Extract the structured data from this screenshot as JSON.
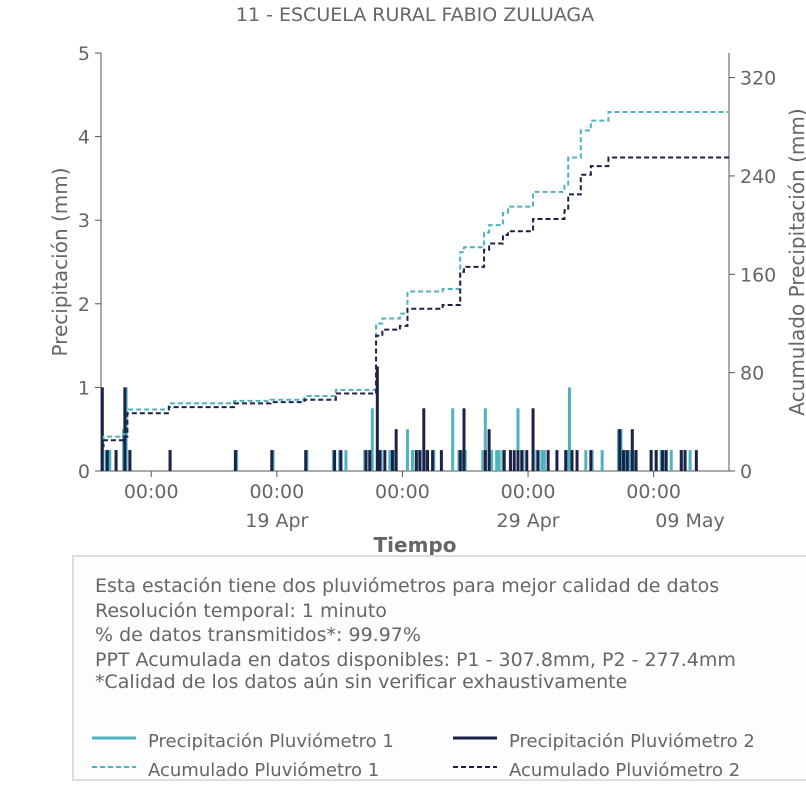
{
  "colors": {
    "series1": "#4fb3bf",
    "series2": "#1c2147",
    "text": "#666666",
    "axis": "#555555"
  },
  "chart_data": {
    "type": "line",
    "title": "11 - ESCUELA RURAL FABIO ZULUAGA",
    "xlabel": "Tiempo",
    "ylabel": "Precipitación (mm)",
    "y2label": "Acumulado Precipitación (mm)",
    "ylim": [
      0,
      5
    ],
    "y2lim": [
      0,
      340
    ],
    "xlim_days": [
      0,
      25
    ],
    "yticks": [
      0,
      1,
      2,
      3,
      4,
      5
    ],
    "y2ticks": [
      0,
      80,
      160,
      240,
      320
    ],
    "xticks": [
      {
        "day": 2,
        "label": "00:00",
        "date": ""
      },
      {
        "day": 7,
        "label": "00:00",
        "date": "19 Apr"
      },
      {
        "day": 12,
        "label": "00:00",
        "date": ""
      },
      {
        "day": 17,
        "label": "00:00",
        "date": "29 Apr"
      },
      {
        "day": 22,
        "label": "00:00",
        "date": ""
      },
      {
        "day": 27,
        "label": "",
        "date": "09 May"
      }
    ],
    "legend_position": "below",
    "series": [
      {
        "name": "Precipitación Pluviómetro 1",
        "kind": "bars",
        "axis": "left",
        "x": [
          0.05,
          0.2,
          0.35,
          0.6,
          0.9,
          1.0,
          1.15,
          2.75,
          5.4,
          6.85,
          8.2,
          9.25,
          9.5,
          9.75,
          10.5,
          10.7,
          10.8,
          11.0,
          11.15,
          11.5,
          11.65,
          12.2,
          12.4,
          12.65,
          12.9,
          13.25,
          14.0,
          14.25,
          14.35,
          14.5,
          15.2,
          15.3,
          15.55,
          15.75,
          15.85,
          16.0,
          16.3,
          16.6,
          16.8,
          17.2,
          17.35,
          17.55,
          17.65,
          18.55,
          18.65,
          19.3,
          19.55,
          19.95,
          20.6,
          20.7,
          20.85,
          21.05,
          21.2,
          21.9,
          22.1,
          22.3,
          22.45,
          22.7,
          23.1,
          23.25,
          23.45
        ],
        "y": [
          1.0,
          0.25,
          0.25,
          0.25,
          0.5,
          1.0,
          0.25,
          0.25,
          0.25,
          0.25,
          0.25,
          0.25,
          0.25,
          0.25,
          0.25,
          0.25,
          0.75,
          0.25,
          0.25,
          0.25,
          0.25,
          0.5,
          0.25,
          0.25,
          0.25,
          0.25,
          0.75,
          0.25,
          0.25,
          0.25,
          0.25,
          0.75,
          0.25,
          0.25,
          0.25,
          0.25,
          0.25,
          0.75,
          0.25,
          0.25,
          0.25,
          0.25,
          0.25,
          0.25,
          1.0,
          0.25,
          0.25,
          0.25,
          0.5,
          0.5,
          0.25,
          0.25,
          0.25,
          0.25,
          0.25,
          0.25,
          0.25,
          0.25,
          0.25,
          0.25,
          0.25
        ]
      },
      {
        "name": "Precipitación Pluviómetro 2",
        "kind": "bars",
        "axis": "left",
        "x": [
          0.05,
          0.25,
          0.6,
          0.95,
          1.15,
          2.75,
          5.35,
          6.8,
          8.15,
          9.3,
          9.55,
          10.55,
          10.7,
          11.0,
          11.1,
          11.3,
          11.6,
          11.75,
          12.55,
          12.7,
          12.85,
          13.0,
          13.2,
          13.55,
          14.3,
          14.45,
          15.3,
          15.45,
          16.05,
          16.3,
          16.45,
          16.6,
          16.75,
          16.95,
          17.2,
          17.4,
          17.8,
          18.15,
          18.5,
          18.75,
          18.95,
          19.5,
          20.65,
          20.8,
          20.95,
          21.15,
          21.3,
          21.9,
          22.1,
          22.35,
          22.5,
          23.1,
          23.25,
          23.7
        ],
        "y": [
          1.0,
          0.25,
          0.25,
          1.0,
          0.25,
          0.25,
          0.25,
          0.25,
          0.25,
          0.25,
          0.25,
          0.25,
          0.25,
          1.25,
          0.25,
          0.25,
          0.25,
          0.5,
          0.25,
          0.25,
          0.75,
          0.25,
          0.25,
          0.25,
          0.25,
          0.75,
          0.25,
          0.5,
          0.25,
          0.25,
          0.25,
          0.25,
          0.25,
          0.25,
          0.75,
          0.25,
          0.25,
          0.25,
          0.25,
          0.25,
          0.25,
          0.25,
          0.5,
          0.25,
          0.25,
          0.5,
          0.25,
          0.25,
          0.25,
          0.25,
          0.25,
          0.25,
          0.25,
          0.25
        ]
      },
      {
        "name": "Acumulado Pluviómetro 1",
        "kind": "step",
        "axis": "right",
        "x": [
          0.0,
          0.1,
          0.9,
          1.05,
          2.7,
          5.3,
          6.75,
          8.1,
          9.35,
          10.95,
          11.2,
          11.9,
          12.2,
          13.6,
          14.3,
          14.45,
          15.25,
          15.45,
          16.0,
          16.2,
          17.2,
          18.45,
          18.6,
          19.1,
          19.5,
          20.2
        ],
        "y": [
          20,
          28,
          30,
          50,
          55,
          57,
          58,
          61,
          66,
          120,
          124,
          128,
          146,
          148,
          178,
          182,
          194,
          200,
          210,
          215,
          227,
          232,
          255,
          277,
          285,
          292
        ]
      },
      {
        "name": "Acumulado Pluviómetro 2",
        "kind": "step",
        "axis": "right",
        "x": [
          0.0,
          0.1,
          0.9,
          1.05,
          2.7,
          5.3,
          6.75,
          8.1,
          9.35,
          10.95,
          11.2,
          11.9,
          12.2,
          13.6,
          14.3,
          14.45,
          15.25,
          15.45,
          16.0,
          16.2,
          17.2,
          18.45,
          18.6,
          19.1,
          19.5,
          20.2
        ],
        "y": [
          20,
          25,
          28,
          47,
          52,
          55,
          56,
          58,
          63,
          110,
          115,
          118,
          132,
          135,
          162,
          166,
          180,
          185,
          192,
          195,
          205,
          212,
          225,
          241,
          248,
          255
        ]
      }
    ]
  },
  "info": {
    "line1": "Esta estación tiene dos pluviómetros para mejor calidad de datos",
    "line2": "Resolución temporal: 1 minuto",
    "line3": "% de datos transmitidos*: 99.97%",
    "line4": "PPT Acumulada en datos disponibles: P1 - 307.8mm, P2 - 277.4mm",
    "line5": "*Calidad de los datos aún sin verificar exhaustivamente"
  },
  "legend": {
    "item1": "Precipitación Pluviómetro 1",
    "item2": "Precipitación Pluviómetro 2",
    "item3": "Acumulado Pluviómetro 1",
    "item4": "Acumulado Pluviómetro 2"
  }
}
